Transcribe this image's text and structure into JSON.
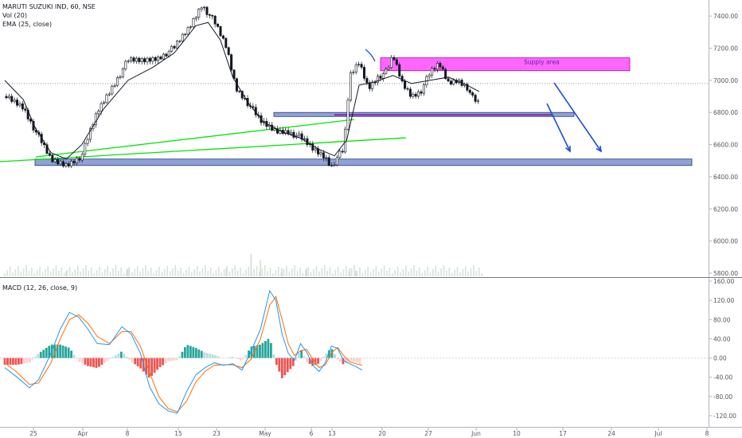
{
  "chart_data": {
    "type": "line",
    "subtype": "candlestick",
    "symbol": "MARUTI SUZUKI IND",
    "interval": "60",
    "exchange": "NSE",
    "title": "MARUTI SUZUKI IND, 60, NSE",
    "indicators": [
      "Vol (20)",
      "EMA (25, close)"
    ],
    "price_axis": {
      "ticks": [
        "7400.00",
        "7200.00",
        "7000.00",
        "6800.00",
        "6600.00",
        "6400.00",
        "6200.00",
        "6000.00",
        "5800.00"
      ],
      "range": [
        5780,
        7490
      ]
    },
    "x_axis": {
      "ticks": [
        "25",
        "Apr",
        "8",
        "15",
        "23",
        "May",
        "6",
        "13",
        "20",
        "27",
        "Jun",
        "10",
        "17",
        "24",
        "Jul",
        "8"
      ]
    },
    "price_path": [
      [
        0,
        6900
      ],
      [
        6,
        6830
      ],
      [
        10,
        6680
      ],
      [
        15,
        6500
      ],
      [
        20,
        6470
      ],
      [
        25,
        6530
      ],
      [
        30,
        6800
      ],
      [
        35,
        6960
      ],
      [
        40,
        7120
      ],
      [
        45,
        7120
      ],
      [
        50,
        7140
      ],
      [
        55,
        7200
      ],
      [
        60,
        7330
      ],
      [
        64,
        7470
      ],
      [
        68,
        7360
      ],
      [
        72,
        7200
      ],
      [
        75,
        6950
      ],
      [
        78,
        6880
      ],
      [
        83,
        6740
      ],
      [
        88,
        6680
      ],
      [
        92,
        6680
      ],
      [
        96,
        6640
      ],
      [
        100,
        6570
      ],
      [
        104,
        6520
      ],
      [
        106,
        6460
      ],
      [
        108,
        6520
      ],
      [
        110,
        6560
      ],
      [
        112,
        7020
      ],
      [
        115,
        7110
      ],
      [
        118,
        6950
      ],
      [
        121,
        7020
      ],
      [
        124,
        7050
      ],
      [
        126,
        7150
      ],
      [
        129,
        6980
      ],
      [
        132,
        6900
      ],
      [
        135,
        6930
      ],
      [
        138,
        7040
      ],
      [
        141,
        7100
      ],
      [
        144,
        6980
      ],
      [
        147,
        7000
      ],
      [
        150,
        6960
      ],
      [
        152,
        6880
      ],
      [
        154,
        6850
      ]
    ],
    "ema_path": [
      [
        0,
        7000
      ],
      [
        6,
        6880
      ],
      [
        10,
        6700
      ],
      [
        15,
        6550
      ],
      [
        20,
        6510
      ],
      [
        25,
        6600
      ],
      [
        32,
        6820
      ],
      [
        40,
        7000
      ],
      [
        48,
        7080
      ],
      [
        55,
        7170
      ],
      [
        62,
        7340
      ],
      [
        66,
        7360
      ],
      [
        70,
        7250
      ],
      [
        74,
        7020
      ],
      [
        79,
        6860
      ],
      [
        84,
        6740
      ],
      [
        90,
        6680
      ],
      [
        96,
        6640
      ],
      [
        102,
        6570
      ],
      [
        107,
        6530
      ],
      [
        111,
        6630
      ],
      [
        115,
        6970
      ],
      [
        120,
        6990
      ],
      [
        126,
        7030
      ],
      [
        132,
        6980
      ],
      [
        138,
        7000
      ],
      [
        144,
        7020
      ],
      [
        150,
        6970
      ],
      [
        154,
        6930
      ]
    ],
    "current_price_line": 6980,
    "drawings": {
      "supply_zone": {
        "label": "Supply area",
        "from": 7140,
        "to": 7060,
        "color": "#ff33ff"
      },
      "support_zone_upper": {
        "from": 6800,
        "to": 6775,
        "color": "#3456b0"
      },
      "support_zone_lower": {
        "from": 6510,
        "to": 6470,
        "color": "#3456b0"
      },
      "purple_level": 6785,
      "trendlines_color": "#00e600",
      "projection_arrows_color": "#1a4fd8"
    },
    "volume_spike_bars": [
      [
        20,
        5810
      ],
      [
        40,
        5830
      ],
      [
        72,
        5830
      ],
      [
        80,
        5920
      ],
      [
        83,
        5880
      ],
      [
        90,
        5830
      ],
      [
        98,
        5830
      ],
      [
        112,
        5830
      ],
      [
        114,
        5815
      ]
    ],
    "macd": {
      "label": "MACD (12, 26, close, 9)",
      "ticks": [
        "160.00",
        "120.00",
        "80.00",
        "40.00",
        "0.00",
        "-40.00",
        "-80.00",
        "-120.00"
      ],
      "range": [
        -130,
        165
      ],
      "macd_line": [
        [
          0,
          -20
        ],
        [
          4,
          -40
        ],
        [
          8,
          -62
        ],
        [
          11,
          -45
        ],
        [
          15,
          10
        ],
        [
          18,
          60
        ],
        [
          21,
          95
        ],
        [
          24,
          85
        ],
        [
          27,
          60
        ],
        [
          30,
          30
        ],
        [
          34,
          28
        ],
        [
          38,
          65
        ],
        [
          41,
          50
        ],
        [
          44,
          10
        ],
        [
          47,
          -60
        ],
        [
          50,
          -95
        ],
        [
          53,
          -110
        ],
        [
          56,
          -115
        ],
        [
          59,
          -70
        ],
        [
          62,
          -35
        ],
        [
          65,
          -20
        ],
        [
          68,
          -10
        ],
        [
          71,
          -15
        ],
        [
          74,
          -12
        ],
        [
          77,
          -25
        ],
        [
          80,
          15
        ],
        [
          83,
          60
        ],
        [
          86,
          140
        ],
        [
          88,
          120
        ],
        [
          90,
          50
        ],
        [
          92,
          10
        ],
        [
          94,
          -5
        ],
        [
          96,
          30
        ],
        [
          98,
          12
        ],
        [
          100,
          -15
        ],
        [
          102,
          -28
        ],
        [
          104,
          -10
        ],
        [
          106,
          25
        ],
        [
          108,
          20
        ],
        [
          110,
          -5
        ],
        [
          112,
          -12
        ],
        [
          114,
          -18
        ],
        [
          116,
          -25
        ]
      ],
      "signal_line": [
        [
          0,
          -10
        ],
        [
          4,
          -30
        ],
        [
          8,
          -55
        ],
        [
          11,
          -52
        ],
        [
          15,
          -10
        ],
        [
          18,
          40
        ],
        [
          21,
          80
        ],
        [
          24,
          90
        ],
        [
          27,
          72
        ],
        [
          30,
          45
        ],
        [
          34,
          30
        ],
        [
          38,
          55
        ],
        [
          41,
          55
        ],
        [
          44,
          25
        ],
        [
          47,
          -30
        ],
        [
          50,
          -80
        ],
        [
          53,
          -105
        ],
        [
          56,
          -112
        ],
        [
          59,
          -90
        ],
        [
          62,
          -50
        ],
        [
          65,
          -28
        ],
        [
          68,
          -15
        ],
        [
          71,
          -14
        ],
        [
          74,
          -14
        ],
        [
          77,
          -20
        ],
        [
          80,
          -2
        ],
        [
          83,
          40
        ],
        [
          86,
          110
        ],
        [
          88,
          128
        ],
        [
          90,
          80
        ],
        [
          92,
          30
        ],
        [
          94,
          5
        ],
        [
          96,
          15
        ],
        [
          98,
          18
        ],
        [
          100,
          -3
        ],
        [
          102,
          -20
        ],
        [
          104,
          -15
        ],
        [
          106,
          10
        ],
        [
          108,
          22
        ],
        [
          110,
          5
        ],
        [
          112,
          -8
        ],
        [
          114,
          -12
        ],
        [
          116,
          -15
        ]
      ]
    }
  }
}
